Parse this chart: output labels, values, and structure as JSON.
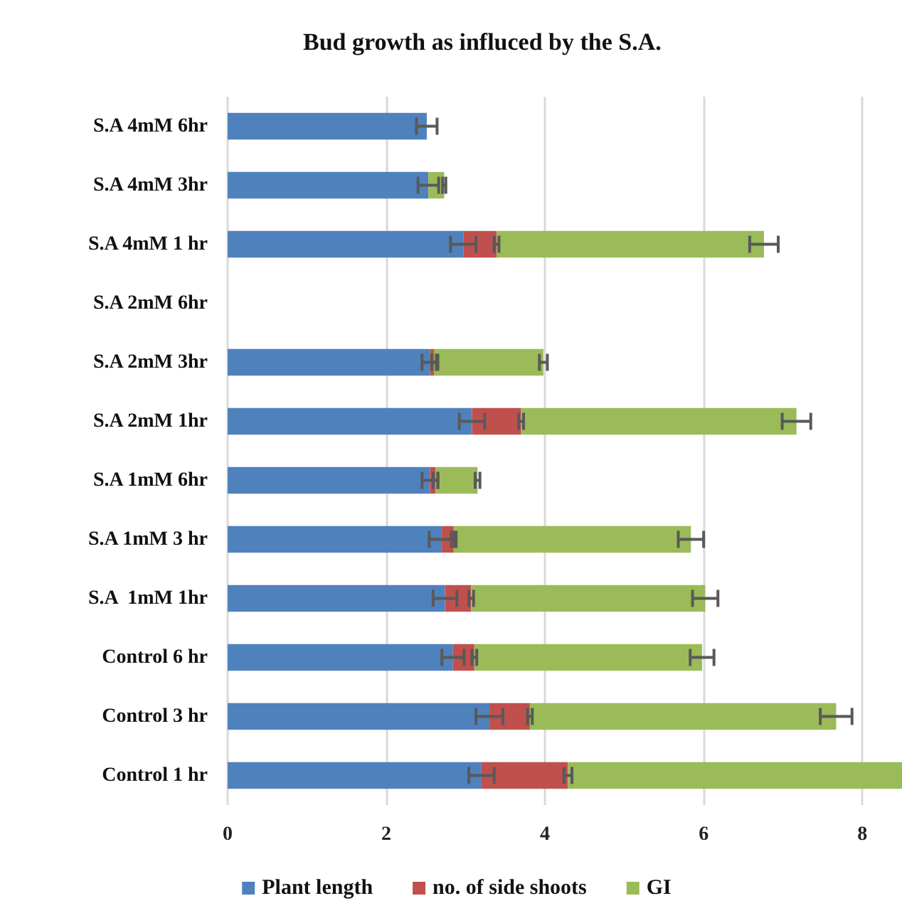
{
  "chart_data": {
    "type": "bar",
    "orientation": "horizontal",
    "stacked": true,
    "title": "Bud growth as influced by the S.A.",
    "categories": [
      "S.A 4mM 6hr",
      "S.A 4mM 3hr",
      "S.A 4mM 1 hr",
      "S.A 2mM 6hr",
      "S.A 2mM 3hr",
      "S.A 2mM 1hr",
      "S.A 1mM 6hr",
      "S.A 1mM 3 hr",
      "S.A  1mM 1hr",
      "Control 6 hr",
      "Control 3 hr",
      "Control 1 hr"
    ],
    "series": [
      {
        "name": "Plant length",
        "color": "#4f81bd",
        "values": [
          2.51,
          2.53,
          2.97,
          null,
          2.55,
          3.08,
          2.55,
          2.7,
          2.74,
          2.84,
          3.3,
          3.2
        ],
        "errors": [
          0.13,
          0.13,
          0.16,
          null,
          0.1,
          0.16,
          0.1,
          0.16,
          0.15,
          0.14,
          0.17,
          0.16
        ]
      },
      {
        "name": "no. of side shoots",
        "color": "#c0504d",
        "values": [
          null,
          null,
          0.42,
          null,
          0.05,
          0.62,
          0.07,
          0.15,
          0.33,
          0.27,
          0.51,
          1.09
        ],
        "errors": [
          null,
          null,
          0.03,
          null,
          0.03,
          0.03,
          0.03,
          0.03,
          0.03,
          0.03,
          0.03,
          0.05
        ]
      },
      {
        "name": "GI",
        "color": "#9bbb59",
        "values": [
          null,
          0.2,
          3.37,
          null,
          1.38,
          3.47,
          0.53,
          2.99,
          2.95,
          2.87,
          3.86,
          4.21
        ],
        "errors": [
          null,
          0.02,
          0.18,
          null,
          0.05,
          0.18,
          0.03,
          0.16,
          0.16,
          0.15,
          0.2,
          null
        ]
      }
    ],
    "xlim": [
      0,
      8.5
    ],
    "xticks": [
      0,
      2,
      4,
      6,
      8
    ],
    "grid": "x",
    "legend": "bottom"
  }
}
